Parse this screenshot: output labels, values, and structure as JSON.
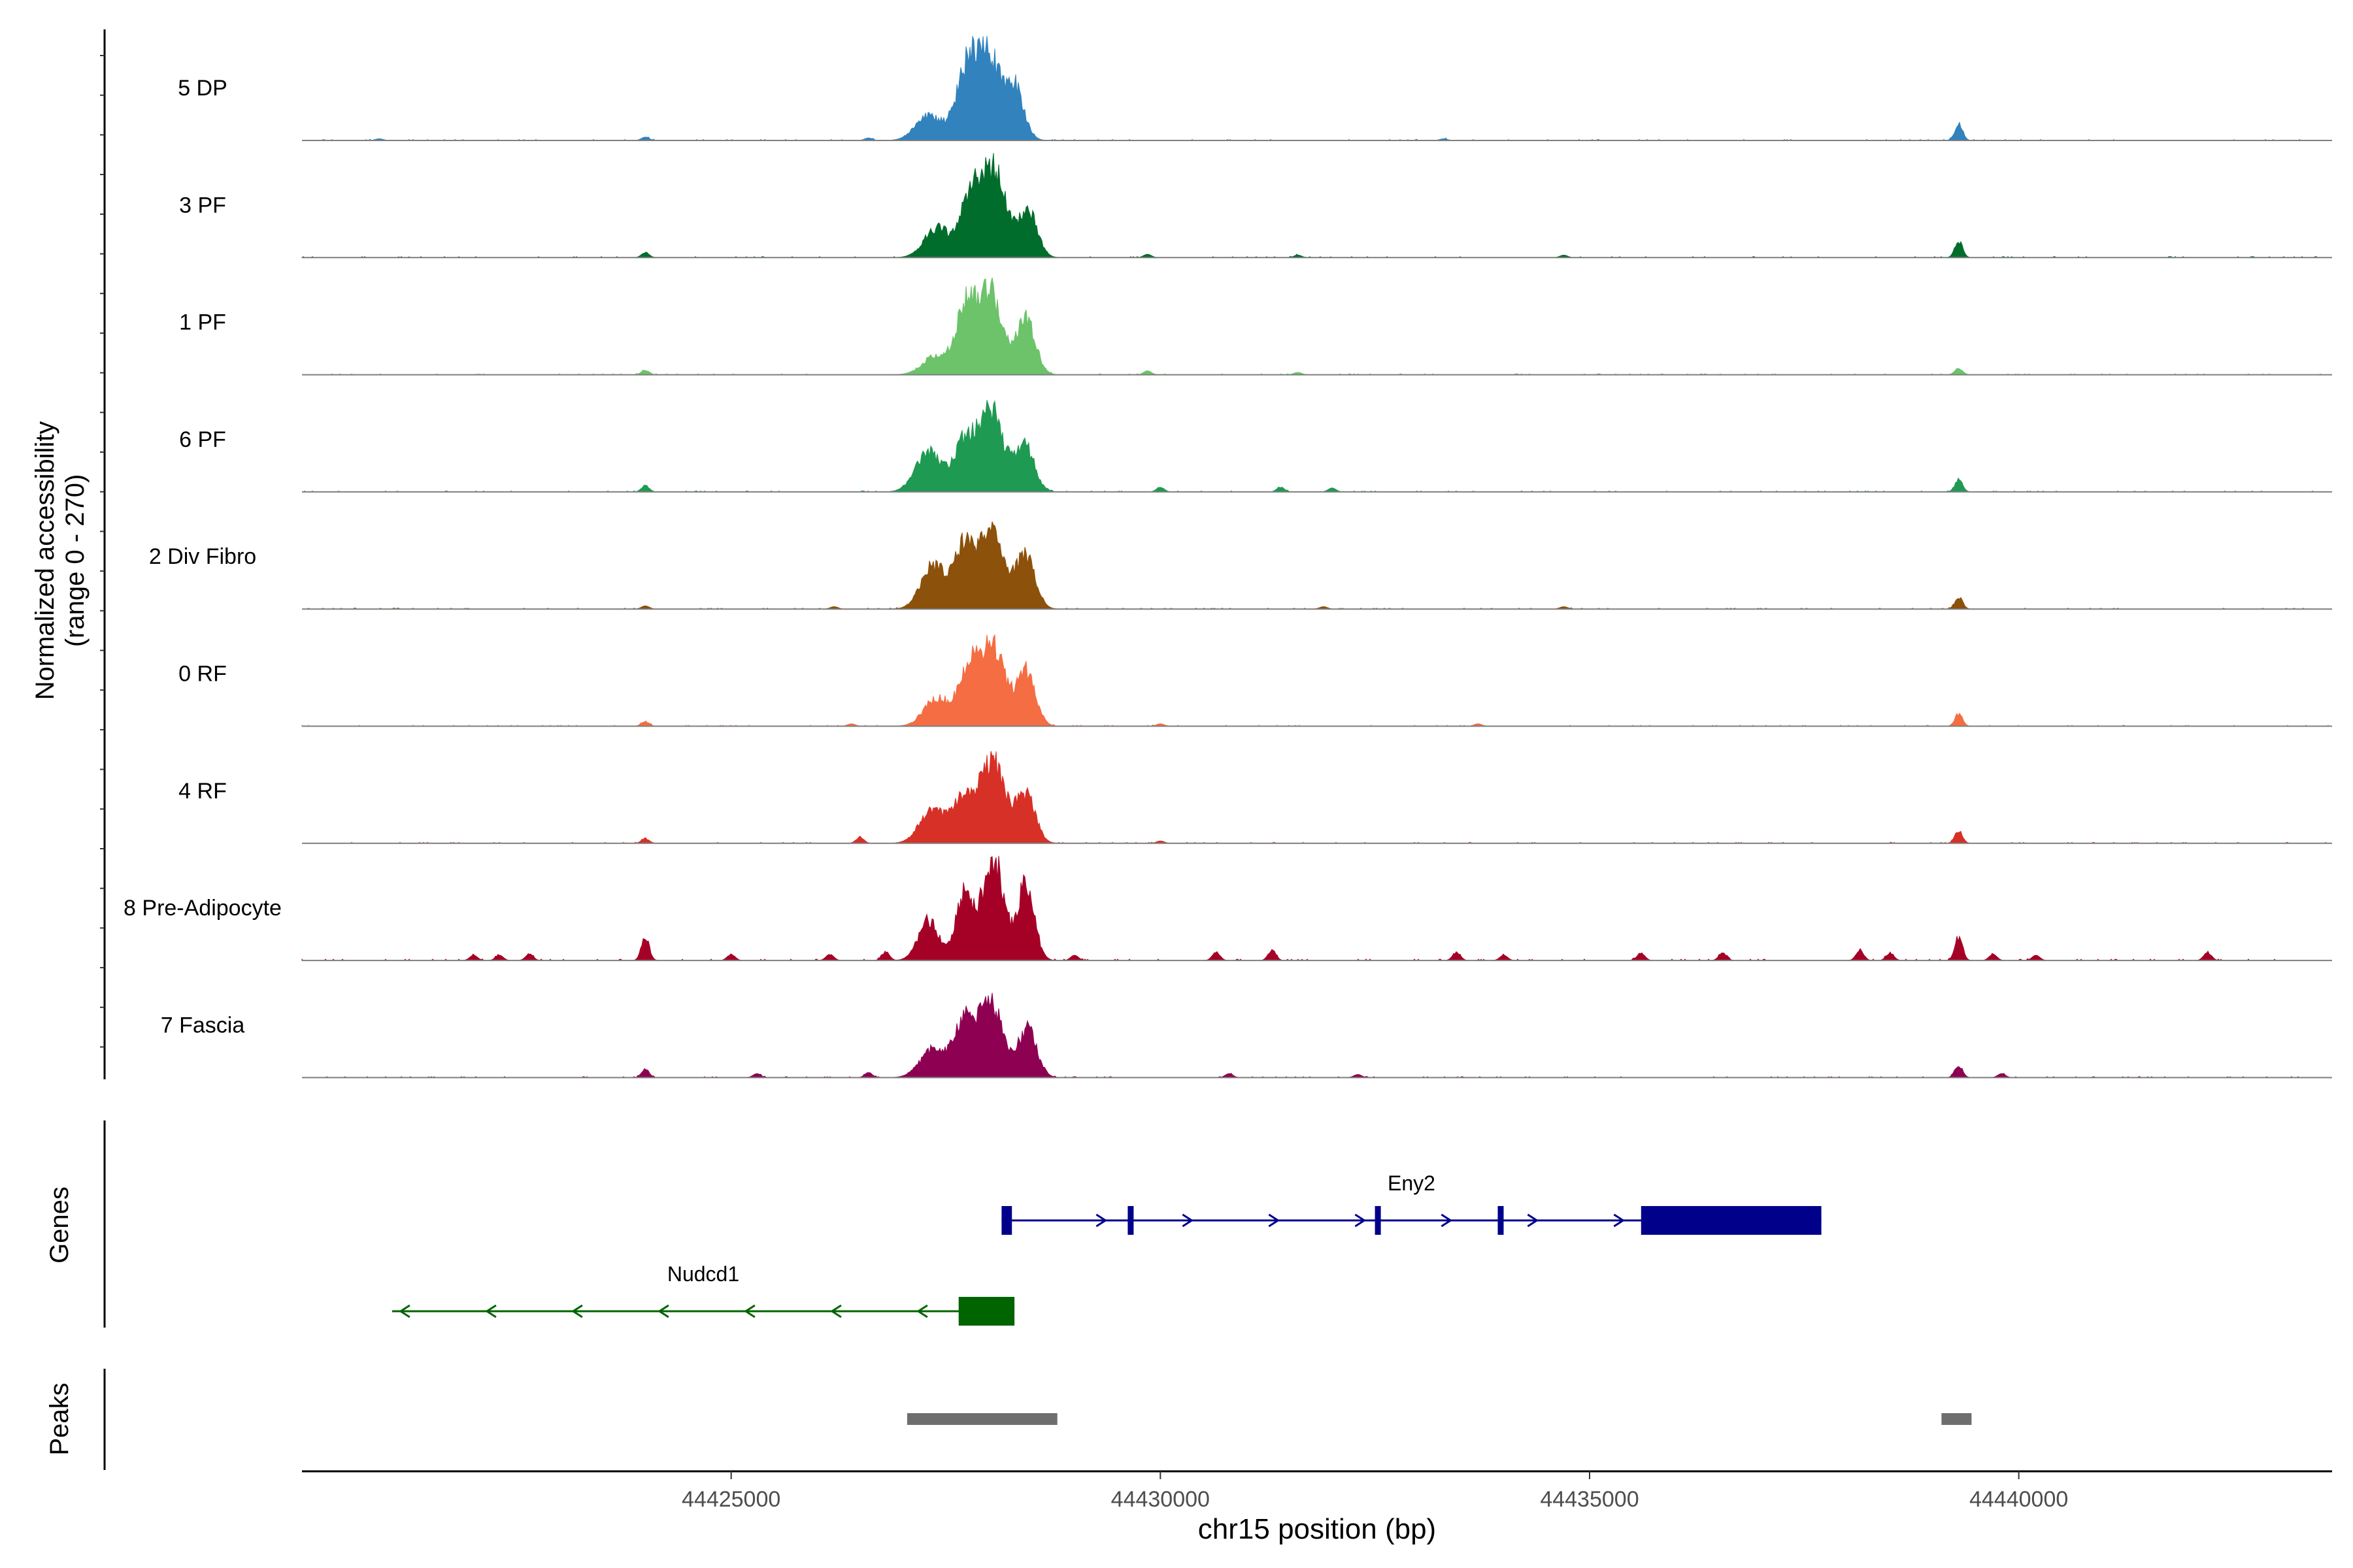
{
  "chart_data": {
    "type": "area",
    "title": "",
    "chromosome": "chr15",
    "xlabel": "chr15 position (bp)",
    "ylabel": "Normalized accessibility",
    "ylabel_range": "(range 0 - 270)",
    "ylim": [
      0,
      270
    ],
    "xlim": [
      44420000,
      44443650
    ],
    "x_ticks": [
      44425000,
      44430000,
      44435000,
      44440000
    ],
    "x_tick_labels": [
      "44425000",
      "44430000",
      "44435000",
      "44440000"
    ],
    "tracks": [
      {
        "name": "5 DP",
        "color": "#3182bd",
        "scale": 1.0,
        "peaks": [
          [
            44427300,
            0.3,
            150
          ],
          [
            44427750,
            0.8,
            130
          ],
          [
            44428000,
            0.98,
            140
          ],
          [
            44428300,
            0.6,
            110
          ]
        ],
        "small": [
          [
            44420900,
            0.02
          ],
          [
            44424000,
            0.04
          ],
          [
            44426600,
            0.03
          ],
          [
            44433300,
            0.02
          ],
          [
            44439300,
            0.2
          ]
        ]
      },
      {
        "name": "3 PF",
        "color": "#006d2c",
        "scale": 1.0,
        "peaks": [
          [
            44427400,
            0.35,
            150
          ],
          [
            44427800,
            0.78,
            120
          ],
          [
            44428070,
            1.0,
            130
          ],
          [
            44428450,
            0.58,
            110
          ]
        ],
        "small": [
          [
            44424000,
            0.06
          ],
          [
            44429850,
            0.04
          ],
          [
            44431600,
            0.03
          ],
          [
            44434700,
            0.03
          ],
          [
            44439300,
            0.2
          ]
        ]
      },
      {
        "name": "1 PF",
        "color": "#6cc36a",
        "scale": 0.95,
        "peaks": [
          [
            44427400,
            0.25,
            160
          ],
          [
            44427750,
            0.86,
            120
          ],
          [
            44428030,
            1.0,
            130
          ],
          [
            44428430,
            0.72,
            110
          ]
        ],
        "small": [
          [
            44424000,
            0.06
          ],
          [
            44429850,
            0.05
          ],
          [
            44431600,
            0.03
          ],
          [
            44439300,
            0.08
          ]
        ]
      },
      {
        "name": "6 PF",
        "color": "#1f9a52",
        "scale": 0.95,
        "peaks": [
          [
            44427300,
            0.5,
            150
          ],
          [
            44427720,
            0.62,
            120
          ],
          [
            44428030,
            1.0,
            140
          ],
          [
            44428420,
            0.58,
            110
          ]
        ],
        "small": [
          [
            44424000,
            0.08
          ],
          [
            44430000,
            0.06
          ],
          [
            44431400,
            0.06
          ],
          [
            44432000,
            0.05
          ],
          [
            44439300,
            0.15
          ]
        ]
      },
      {
        "name": "2 Div Fibro",
        "color": "#8c510a",
        "scale": 0.95,
        "peaks": [
          [
            44427350,
            0.55,
            140
          ],
          [
            44427720,
            0.76,
            120
          ],
          [
            44428030,
            1.0,
            140
          ],
          [
            44428430,
            0.68,
            110
          ]
        ],
        "small": [
          [
            44424000,
            0.04
          ],
          [
            44426200,
            0.03
          ],
          [
            44431900,
            0.03
          ],
          [
            44434700,
            0.03
          ],
          [
            44439300,
            0.15
          ]
        ]
      },
      {
        "name": "0 RF",
        "color": "#f46d43",
        "scale": 0.95,
        "peaks": [
          [
            44427400,
            0.35,
            150
          ],
          [
            44427780,
            0.73,
            120
          ],
          [
            44428050,
            1.0,
            130
          ],
          [
            44428430,
            0.72,
            110
          ]
        ],
        "small": [
          [
            44424000,
            0.06
          ],
          [
            44426400,
            0.03
          ],
          [
            44430000,
            0.03
          ],
          [
            44433700,
            0.03
          ],
          [
            44439300,
            0.15
          ]
        ]
      },
      {
        "name": "4 RF",
        "color": "#d73027",
        "scale": 0.95,
        "peaks": [
          [
            44427350,
            0.42,
            150
          ],
          [
            44427720,
            0.55,
            130
          ],
          [
            44428050,
            1.0,
            140
          ],
          [
            44428430,
            0.62,
            110
          ]
        ],
        "small": [
          [
            44424000,
            0.06
          ],
          [
            44426500,
            0.08
          ],
          [
            44430000,
            0.03
          ],
          [
            44439300,
            0.15
          ]
        ]
      },
      {
        "name": "8 Pre-Adipocyte",
        "color": "#a50026",
        "scale": 1.25,
        "peaks": [
          [
            44427300,
            0.38,
            120
          ],
          [
            44427720,
            0.65,
            100
          ],
          [
            44428050,
            1.0,
            120
          ],
          [
            44428430,
            0.72,
            100
          ]
        ],
        "small": [
          [
            44422000,
            0.05
          ],
          [
            44422300,
            0.05
          ],
          [
            44422650,
            0.06
          ],
          [
            44424000,
            0.22
          ],
          [
            44425000,
            0.06
          ],
          [
            44426150,
            0.06
          ],
          [
            44426800,
            0.08
          ],
          [
            44429000,
            0.05
          ],
          [
            44430650,
            0.08
          ],
          [
            44431300,
            0.1
          ],
          [
            44433450,
            0.08
          ],
          [
            44434000,
            0.05
          ],
          [
            44435600,
            0.07
          ],
          [
            44436550,
            0.07
          ],
          [
            44438150,
            0.1
          ],
          [
            44438500,
            0.07
          ],
          [
            44439300,
            0.22
          ],
          [
            44439700,
            0.06
          ],
          [
            44440200,
            0.05
          ],
          [
            44442200,
            0.08
          ]
        ]
      },
      {
        "name": "7 Fascia",
        "color": "#8e0152",
        "scale": 0.95,
        "peaks": [
          [
            44427350,
            0.35,
            150
          ],
          [
            44427720,
            0.72,
            120
          ],
          [
            44428030,
            0.95,
            130
          ],
          [
            44428450,
            0.6,
            110
          ]
        ],
        "small": [
          [
            44424000,
            0.1
          ],
          [
            44425300,
            0.05
          ],
          [
            44426600,
            0.06
          ],
          [
            44430800,
            0.05
          ],
          [
            44432300,
            0.04
          ],
          [
            44439300,
            0.15
          ],
          [
            44439800,
            0.05
          ]
        ]
      }
    ],
    "genes": [
      {
        "name": "Eny2",
        "strand": "+",
        "color": "#00008b",
        "start": 44428150,
        "end": 44437700,
        "exons": [
          [
            44428150,
            44428270
          ],
          [
            44429620,
            44429680
          ],
          [
            44432500,
            44432560
          ],
          [
            44433930,
            44433990
          ],
          [
            44435600,
            44437700
          ]
        ]
      },
      {
        "name": "Nudcd1",
        "strand": "-",
        "color": "#006400",
        "start": 44421050,
        "end": 44428300,
        "exons": [
          [
            44427650,
            44428300
          ]
        ]
      }
    ],
    "peak_regions": [
      [
        44427050,
        44428800
      ],
      [
        44439100,
        44439450
      ]
    ],
    "panel_labels": {
      "genes": "Genes",
      "peaks": "Peaks"
    }
  }
}
